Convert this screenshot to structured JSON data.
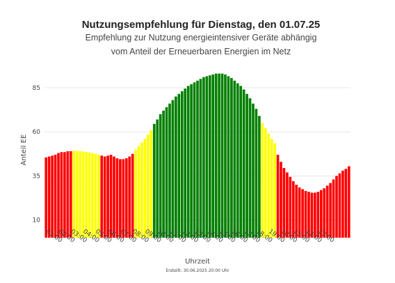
{
  "chart_data": {
    "type": "bar",
    "title": "Nutzungsempfehlung für Dienstag, den 01.07.25",
    "subtitle_lines": [
      "Empfehlung zur Nutzung energieintensiver Geräte abhängig",
      "vom Anteil der Erneuerbaren Energien im Netz"
    ],
    "xlabel": "Uhrzeit",
    "ylabel": "Anteil EE",
    "footer": "Erstellt: 30.06.2025 20:00 Uhr",
    "ylim": [
      0,
      96
    ],
    "yticks": [
      10,
      35,
      60,
      85
    ],
    "grid": true,
    "xticks": [
      "01:00",
      "02:00",
      "03:00",
      "04:00",
      "05:00",
      "06:00",
      "07:00",
      "08:00",
      "09:00",
      "10:00",
      "11:00",
      "12:00",
      "13:00",
      "14:00",
      "15:00",
      "16:00",
      "17:00",
      "18:00",
      "19:00",
      "20:00",
      "21:00",
      "22:00",
      "23:00"
    ],
    "x_start": "00:00",
    "x_step_minutes": 15,
    "colors": {
      "red": "#ff0000",
      "yellow": "#ffff00",
      "green": "#008000"
    },
    "values": [
      45.5,
      46,
      46.5,
      47,
      48,
      48.5,
      48.5,
      49,
      49,
      49.3,
      49.2,
      49,
      48.8,
      48.6,
      48.3,
      48,
      47.5,
      47,
      46.5,
      46,
      46.5,
      47,
      46,
      45,
      44.5,
      44.5,
      45,
      46,
      47.5,
      50,
      52,
      54,
      56,
      58.5,
      61,
      64.5,
      67,
      70,
      72,
      74,
      76,
      78,
      80,
      81.5,
      83,
      84.5,
      86,
      87,
      88,
      89,
      90,
      91,
      91.5,
      92,
      92.5,
      93,
      93,
      93,
      92.5,
      91.5,
      90.5,
      89,
      87.5,
      86,
      84,
      81.5,
      79,
      76,
      73,
      69,
      65,
      62,
      59,
      56,
      53.5,
      47,
      43,
      39.5,
      37,
      34.5,
      32,
      30,
      28.5,
      27.5,
      26.5,
      26,
      25.5,
      25.5,
      26,
      27,
      28,
      29.5,
      31,
      33,
      35,
      36.5,
      38,
      39,
      40.5
    ],
    "color_codes": [
      "r",
      "r",
      "r",
      "r",
      "r",
      "r",
      "r",
      "r",
      "r",
      "y",
      "y",
      "y",
      "y",
      "y",
      "y",
      "y",
      "y",
      "y",
      "r",
      "r",
      "r",
      "r",
      "r",
      "r",
      "r",
      "r",
      "r",
      "r",
      "r",
      "y",
      "y",
      "y",
      "y",
      "y",
      "y",
      "g",
      "g",
      "g",
      "g",
      "g",
      "g",
      "g",
      "g",
      "g",
      "g",
      "g",
      "g",
      "g",
      "g",
      "g",
      "g",
      "g",
      "g",
      "g",
      "g",
      "g",
      "g",
      "g",
      "g",
      "g",
      "g",
      "g",
      "g",
      "g",
      "g",
      "g",
      "g",
      "g",
      "g",
      "g",
      "y",
      "y",
      "y",
      "y",
      "y",
      "r",
      "r",
      "r",
      "r",
      "r",
      "r",
      "r",
      "r",
      "r",
      "r",
      "r",
      "r",
      "r",
      "r",
      "r",
      "r",
      "r",
      "r",
      "r",
      "r",
      "r",
      "r",
      "r",
      "r"
    ]
  }
}
